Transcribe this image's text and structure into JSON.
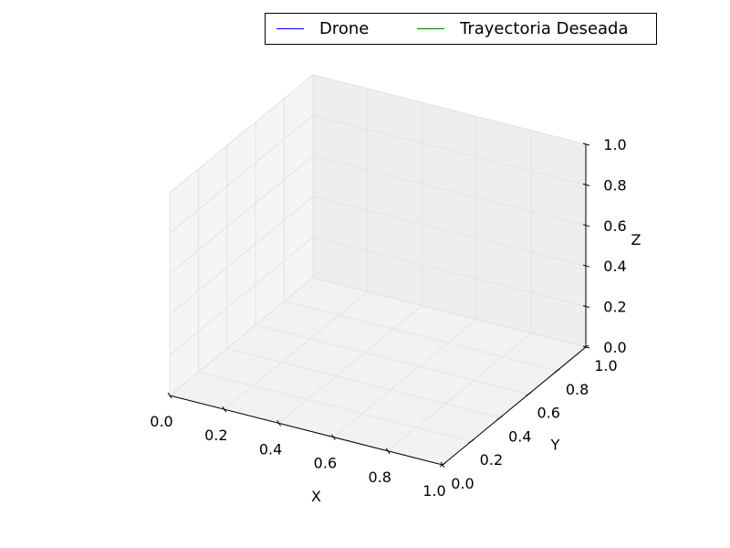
{
  "chart_data": {
    "type": "line",
    "projection": "3d",
    "title": "",
    "xlabel": "X",
    "ylabel": "Y",
    "zlabel": "Z",
    "xlim": [
      0.0,
      1.0
    ],
    "ylim": [
      0.0,
      1.0
    ],
    "zlim": [
      0.0,
      1.0
    ],
    "xticks": [
      "0.0",
      "0.2",
      "0.4",
      "0.6",
      "0.8",
      "1.0"
    ],
    "yticks": [
      "0.0",
      "0.2",
      "0.4",
      "0.6",
      "0.8",
      "1.0"
    ],
    "zticks": [
      "0.0",
      "0.2",
      "0.4",
      "0.6",
      "0.8",
      "1.0"
    ],
    "grid": true,
    "legend_position": "top-right",
    "series": [
      {
        "name": "Drone",
        "color": "#0000ff",
        "x": [],
        "y": [],
        "z": []
      },
      {
        "name": "Trayectoria Deseada",
        "color": "#008000",
        "x": [],
        "y": [],
        "z": []
      }
    ]
  }
}
